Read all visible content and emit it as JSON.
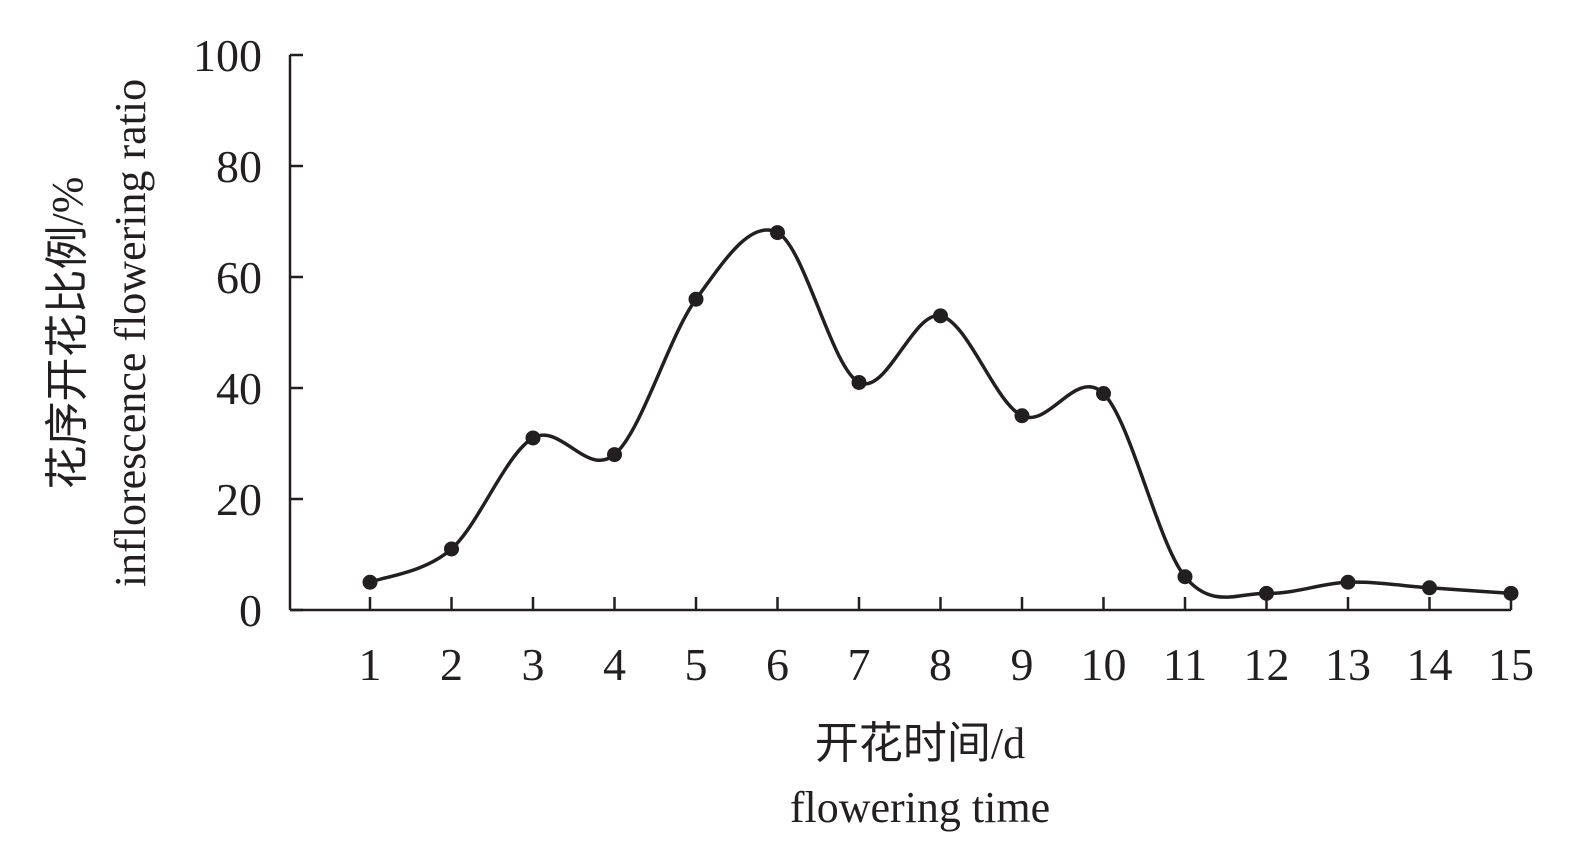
{
  "chart_data": {
    "type": "line",
    "x": [
      1,
      2,
      3,
      4,
      5,
      6,
      7,
      8,
      9,
      10,
      11,
      12,
      13,
      14,
      15
    ],
    "series": [
      {
        "values": [
          5,
          11,
          31,
          28,
          56,
          68,
          41,
          53,
          35,
          39,
          6,
          3,
          5,
          4,
          3
        ]
      }
    ],
    "xlabel_cn": "开花时间/d",
    "xlabel_en": "flowering time",
    "ylabel_cn": "花序开花比例/%",
    "ylabel_en": "inflorescence flowering ratio",
    "ylim": [
      0,
      100
    ],
    "yticks": [
      0,
      20,
      40,
      60,
      80,
      100
    ],
    "xticks": [
      "1",
      "2",
      "3",
      "4",
      "5",
      "6",
      "7",
      "8",
      "9",
      "10",
      "11",
      "12",
      "13",
      "14",
      "15"
    ],
    "line_style": "smooth",
    "marker": "filled-circle",
    "grid": false,
    "legend": "none",
    "colors": {
      "line": "#231f20",
      "marker": "#231f20",
      "axis": "#231f20"
    }
  }
}
